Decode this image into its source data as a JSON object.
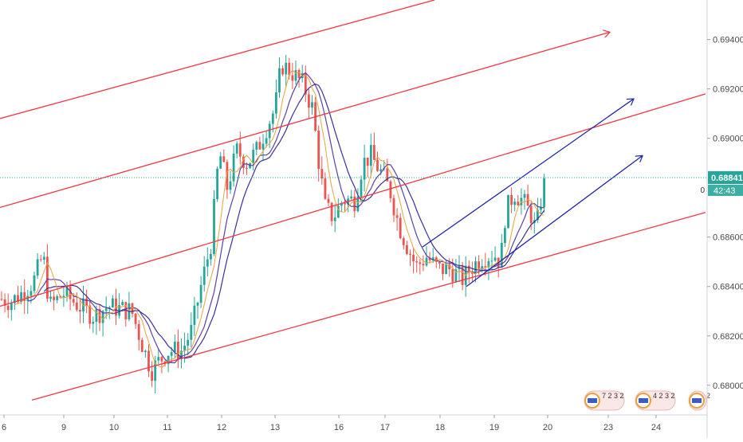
{
  "chart_data": {
    "type": "candlestick",
    "instrument_hint": "forex pair, hourly candles",
    "grid": false,
    "y_axis": {
      "position": "right",
      "range": [
        0.6788,
        0.6956
      ],
      "tick_labels": [
        "0.69400",
        "0.69200",
        "0.69000",
        "0.68600",
        "0.68400",
        "0.68200",
        "0.68000"
      ],
      "tick_values": [
        0.694,
        0.692,
        0.69,
        0.686,
        0.684,
        0.682,
        0.68
      ]
    },
    "x_axis": {
      "tick_labels": [
        "6",
        "9",
        "10",
        "11",
        "12",
        "13",
        "16",
        "17",
        "18",
        "19",
        "20",
        "23",
        "24"
      ],
      "note": "trading days; weekends skipped"
    },
    "last_price": {
      "value": 0.68841,
      "label": "0.68841",
      "countdown": "42:43",
      "countdown_prefix": "0"
    },
    "ohlc_anchor_path": [
      [
        0,
        0.6835
      ],
      [
        14,
        0.6834
      ],
      [
        30,
        0.6838
      ],
      [
        42,
        0.6842
      ],
      [
        54,
        0.6853
      ],
      [
        62,
        0.6832
      ],
      [
        80,
        0.6837
      ],
      [
        100,
        0.6832
      ],
      [
        118,
        0.6828
      ],
      [
        135,
        0.6832
      ],
      [
        150,
        0.6831
      ],
      [
        165,
        0.683
      ],
      [
        180,
        0.6815
      ],
      [
        190,
        0.6806
      ],
      [
        200,
        0.681
      ],
      [
        212,
        0.6814
      ],
      [
        228,
        0.6814
      ],
      [
        240,
        0.6822
      ],
      [
        252,
        0.684
      ],
      [
        265,
        0.6858
      ],
      [
        275,
        0.6895
      ],
      [
        285,
        0.688
      ],
      [
        297,
        0.6895
      ],
      [
        310,
        0.689
      ],
      [
        322,
        0.6895
      ],
      [
        335,
        0.6905
      ],
      [
        345,
        0.6912
      ],
      [
        353,
        0.693
      ],
      [
        365,
        0.6927
      ],
      [
        380,
        0.6922
      ],
      [
        392,
        0.6912
      ],
      [
        400,
        0.689
      ],
      [
        408,
        0.6872
      ],
      [
        418,
        0.6868
      ],
      [
        430,
        0.6875
      ],
      [
        445,
        0.6875
      ],
      [
        455,
        0.689
      ],
      [
        465,
        0.6893
      ],
      [
        480,
        0.6885
      ],
      [
        490,
        0.6878
      ],
      [
        500,
        0.6865
      ],
      [
        510,
        0.6857
      ],
      [
        522,
        0.6848
      ],
      [
        535,
        0.6852
      ],
      [
        550,
        0.6847
      ],
      [
        565,
        0.6847
      ],
      [
        580,
        0.6843
      ],
      [
        592,
        0.6848
      ],
      [
        605,
        0.6852
      ],
      [
        620,
        0.6853
      ],
      [
        628,
        0.685
      ],
      [
        634,
        0.687
      ],
      [
        645,
        0.6878
      ],
      [
        655,
        0.6875
      ],
      [
        668,
        0.6868
      ],
      [
        672,
        0.6862
      ],
      [
        680,
        0.6878
      ],
      [
        685,
        0.6884
      ]
    ],
    "channel_lines": [
      {
        "color": "#f23645",
        "from": [
          0,
          0.6908
        ],
        "to": [
          545,
          0.6956
        ],
        "arrow": false
      },
      {
        "color": "#f23645",
        "from": [
          0,
          0.6872
        ],
        "to": [
          765,
          0.6943
        ],
        "arrow": true
      },
      {
        "color": "#f23645",
        "from": [
          0,
          0.6832
        ],
        "to": [
          885,
          0.6918
        ],
        "arrow": false
      },
      {
        "color": "#f23645",
        "from": [
          40,
          0.6794
        ],
        "to": [
          885,
          0.687
        ],
        "arrow": false
      },
      {
        "color": "#1e22aa",
        "from": [
          530,
          0.6856
        ],
        "to": [
          795,
          0.6916
        ],
        "arrow": true
      },
      {
        "color": "#1e22aa",
        "from": [
          585,
          0.684
        ],
        "to": [
          806,
          0.6893
        ],
        "arrow": true
      }
    ],
    "moving_averages": [
      {
        "color": "#5b3fa6",
        "lag": 1
      },
      {
        "color": "#3a2f9a",
        "lag": 2
      },
      {
        "color": "#e8a33d",
        "lag": 0
      }
    ],
    "colors": {
      "up": "#26a69a",
      "down": "#ef5350",
      "price_line": "#26a69a",
      "axis_text": "#4a4a4a",
      "price_label_bg": "#26a69a"
    },
    "events": [
      {
        "label": "7 2 3 2",
        "type": "economic-calendar-badges"
      },
      {
        "label": "4 2 3 2",
        "type": "economic-calendar-badges"
      },
      {
        "label": "2",
        "type": "economic-calendar-badges"
      }
    ]
  }
}
